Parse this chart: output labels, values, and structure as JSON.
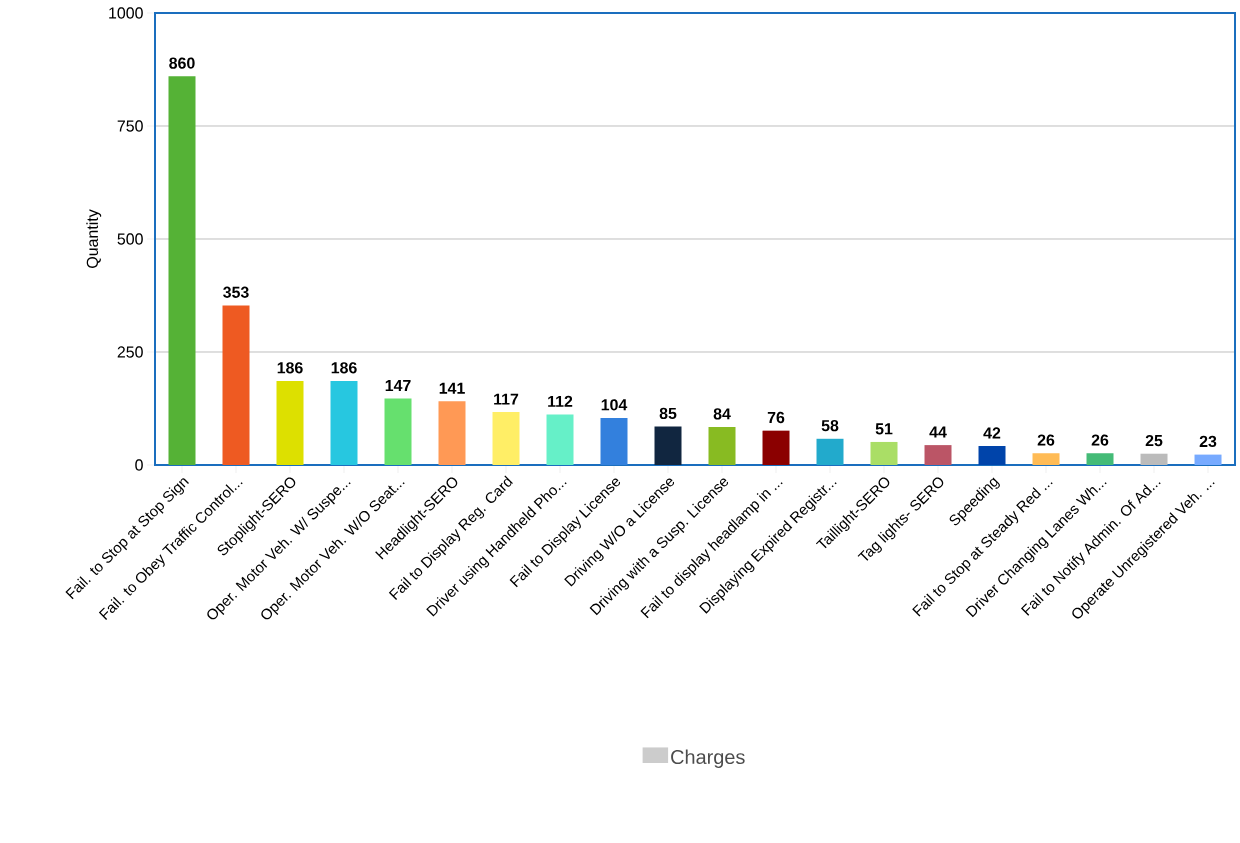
{
  "chart_data": {
    "type": "bar",
    "ylabel": "Quantity",
    "categories": [
      "Fail. to Stop at Stop Sign",
      "Fail. to Obey Traffic Control...",
      "Stoplight-SERO",
      "Oper. Motor Veh. W/ Suspe...",
      "Oper. Motor Veh. W/O Seat...",
      "Headlight-SERO",
      "Fail to Display Reg. Card",
      "Driver using Handheld Pho...",
      "Fail to Display License",
      "Driving W/O a License",
      "Driving with a Susp. License",
      "Fail to display headlamp in ...",
      "Displaying Expired Registr...",
      "Taillight-SERO",
      "Tag lights- SERO",
      "Speeding",
      "Fail to Stop at Steady Red ...",
      "Driver Changing Lanes Wh...",
      "Fail to Notify Admin. Of Ad...",
      "Operate Unregistered Veh. ..."
    ],
    "series": [
      {
        "name": "Charges",
        "color": "#cccccc",
        "colors": [
          "#55b236",
          "#ee5a22",
          "#dde000",
          "#27c7e0",
          "#66e06e",
          "#ff9955",
          "#ffee66",
          "#66f0c8",
          "#3380dd",
          "#112640",
          "#88bb22",
          "#8b0000",
          "#22aacc",
          "#aade66",
          "#bb5566",
          "#0044aa",
          "#ffbb55",
          "#44bb77",
          "#bbbbbb",
          "#77aaff"
        ],
        "values": [
          860,
          353,
          186,
          186,
          147,
          141,
          117,
          112,
          104,
          85,
          84,
          76,
          58,
          51,
          44,
          42,
          26,
          26,
          25,
          23
        ]
      }
    ],
    "ylim": [
      0,
      1000
    ],
    "yticks": [
      0,
      250,
      500,
      750,
      1000
    ],
    "grid": "y",
    "legend": "bottom",
    "data_labels": true
  }
}
